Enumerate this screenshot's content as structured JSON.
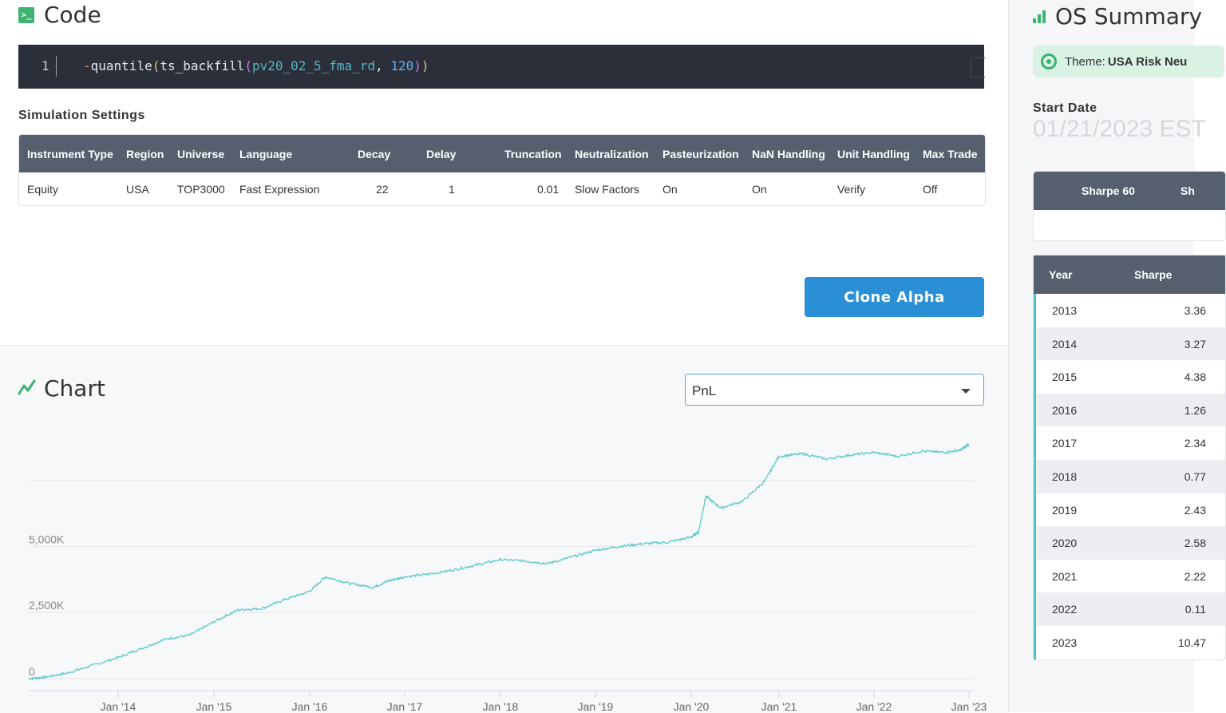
{
  "code": {
    "title": "Code",
    "icon": "terminal-icon",
    "line_number": "1",
    "tokens": {
      "minus": "-",
      "fn1": "quantile",
      "paren_open1": "(",
      "fn2": "ts_backfill",
      "paren_open2": "(",
      "var": "pv20_02_5_fma_rd",
      "comma": ", ",
      "num": "120",
      "paren_close2": ")",
      "paren_close1": ")"
    }
  },
  "simulation": {
    "title": "Simulation Settings",
    "headers": [
      "Instrument Type",
      "Region",
      "Universe",
      "Language",
      "Decay",
      "Delay",
      "Truncation",
      "Neutralization",
      "Pasteurization",
      "NaN Handling",
      "Unit Handling",
      "Max Trade"
    ],
    "values": [
      "Equity",
      "USA",
      "TOP3000",
      "Fast Expression",
      "22",
      "1",
      "0.01",
      "Slow Factors",
      "On",
      "On",
      "Verify",
      "Off"
    ]
  },
  "clone_button": "Clone Alpha",
  "chart": {
    "title": "Chart",
    "icon": "line-chart-icon",
    "select_value": "PnL",
    "line_color": "#5cc8c8"
  },
  "chart_data": {
    "type": "line",
    "title": "",
    "xlabel": "",
    "ylabel": "",
    "y_ticks": [
      "0",
      "2,500K",
      "5,000K"
    ],
    "x_ticks": [
      "Jan '14",
      "Jan '15",
      "Jan '16",
      "Jan '17",
      "Jan '18",
      "Jan '19",
      "Jan '20",
      "Jan '21",
      "Jan '22",
      "Jan '23"
    ],
    "ylim": [
      0,
      8750
    ],
    "series": [
      {
        "x": [
          "2013-01",
          "2013-03",
          "2013-06",
          "2013-09",
          "2014-01",
          "2014-04",
          "2014-07",
          "2014-10",
          "2015-01",
          "2015-04",
          "2015-07",
          "2015-10",
          "2016-01",
          "2016-03",
          "2016-06",
          "2016-09",
          "2016-11",
          "2017-01",
          "2017-04",
          "2017-07",
          "2017-10",
          "2018-01",
          "2018-04",
          "2018-07",
          "2018-10",
          "2019-01",
          "2019-04",
          "2019-07",
          "2019-10",
          "2020-01",
          "2020-02",
          "2020-03",
          "2020-05",
          "2020-08",
          "2020-11",
          "2021-01",
          "2021-04",
          "2021-07",
          "2021-10",
          "2022-01",
          "2022-04",
          "2022-07",
          "2022-10",
          "2022-12",
          "2023-01"
        ],
        "values": [
          0,
          50,
          200,
          450,
          800,
          1150,
          1500,
          1650,
          2150,
          2600,
          2650,
          3000,
          3300,
          3850,
          3600,
          3450,
          3700,
          3850,
          3950,
          4100,
          4300,
          4500,
          4450,
          4350,
          4600,
          4850,
          5000,
          5100,
          5150,
          5350,
          5550,
          6900,
          6450,
          6700,
          7450,
          8400,
          8500,
          8300,
          8450,
          8550,
          8400,
          8600,
          8550,
          8650,
          8850
        ]
      }
    ]
  },
  "os_summary": {
    "title": "OS Summary",
    "icon": "bar-chart-icon",
    "theme_label": "Theme: ",
    "theme_value": "USA Risk Neu",
    "start_date_label": "Start Date",
    "start_date_value": "01/21/2023 EST",
    "sharpe_headers": [
      "Sharpe 60",
      "Sh"
    ],
    "year_headers": [
      "Year",
      "Sharpe"
    ],
    "years": [
      {
        "year": "2013",
        "sharpe": "3.36"
      },
      {
        "year": "2014",
        "sharpe": "3.27"
      },
      {
        "year": "2015",
        "sharpe": "4.38"
      },
      {
        "year": "2016",
        "sharpe": "1.26"
      },
      {
        "year": "2017",
        "sharpe": "2.34"
      },
      {
        "year": "2018",
        "sharpe": "0.77"
      },
      {
        "year": "2019",
        "sharpe": "2.43"
      },
      {
        "year": "2020",
        "sharpe": "2.58"
      },
      {
        "year": "2021",
        "sharpe": "2.22"
      },
      {
        "year": "2022",
        "sharpe": "0.11"
      },
      {
        "year": "2023",
        "sharpe": "10.47"
      }
    ]
  }
}
